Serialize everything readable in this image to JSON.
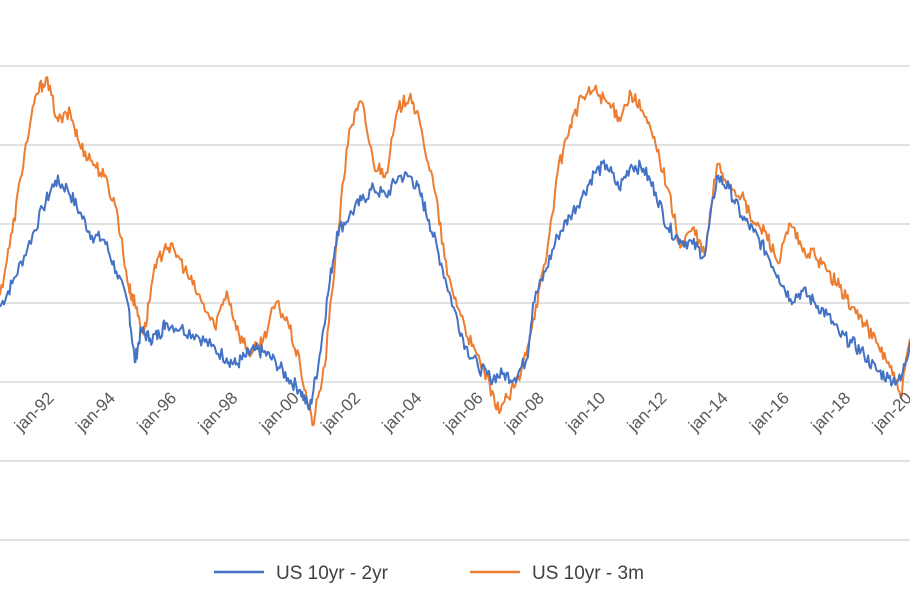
{
  "chart_data": {
    "type": "line",
    "title": "",
    "xlabel": "",
    "ylabel": "",
    "x_tick_labels": [
      "jan-92",
      "jan-94",
      "jan-96",
      "jan-98",
      "jan-00",
      "jan-02",
      "jan-04",
      "jan-06",
      "jan-08",
      "jan-10",
      "jan-12",
      "jan-14",
      "jan-16",
      "jan-18",
      "jan-20"
    ],
    "xlim": [
      1990.6,
      2020.3
    ],
    "y_tick_labels": [],
    "gridlines": 7,
    "grid": true,
    "legend_position": "bottom",
    "series": [
      {
        "name": "US 10yr - 2yr",
        "color": "#4472C4",
        "x": [
          1990.6,
          1991.0,
          1991.5,
          1992.0,
          1992.4,
          1992.8,
          1993.2,
          1993.6,
          1994.0,
          1994.4,
          1994.8,
          1995.0,
          1995.2,
          1995.5,
          1995.8,
          1996.0,
          1996.5,
          1997.0,
          1997.5,
          1998.0,
          1998.3,
          1998.6,
          1998.9,
          1999.2,
          1999.6,
          2000.0,
          2000.4,
          2000.7,
          2001.0,
          2001.3,
          2001.6,
          2002.0,
          2002.4,
          2002.8,
          2003.2,
          2003.6,
          2004.0,
          2004.3,
          2004.6,
          2005.0,
          2005.4,
          2005.8,
          2006.2,
          2006.6,
          2007.0,
          2007.4,
          2007.8,
          2008.0,
          2008.4,
          2008.8,
          2009.2,
          2009.6,
          2010.0,
          2010.4,
          2010.8,
          2011.2,
          2011.6,
          2012.0,
          2012.4,
          2012.8,
          2013.2,
          2013.6,
          2014.0,
          2014.4,
          2014.8,
          2015.2,
          2015.6,
          2016.0,
          2016.4,
          2016.8,
          2017.2,
          2017.6,
          2018.0,
          2018.4,
          2018.8,
          2019.2,
          2019.6,
          2020.0,
          2020.3
        ],
        "y": [
          0.95,
          1.25,
          1.7,
          2.2,
          2.55,
          2.45,
          2.15,
          1.85,
          1.8,
          1.4,
          0.95,
          0.25,
          0.65,
          0.55,
          0.6,
          0.75,
          0.68,
          0.6,
          0.45,
          0.3,
          0.22,
          0.32,
          0.4,
          0.38,
          0.25,
          0.05,
          -0.1,
          -0.35,
          0.25,
          1.1,
          1.9,
          2.1,
          2.3,
          2.45,
          2.35,
          2.6,
          2.6,
          2.4,
          2.05,
          1.5,
          0.95,
          0.45,
          0.2,
          0.05,
          0.1,
          0.05,
          0.3,
          1.0,
          1.4,
          1.85,
          2.1,
          2.35,
          2.65,
          2.75,
          2.45,
          2.75,
          2.7,
          2.4,
          1.95,
          1.8,
          1.75,
          1.6,
          2.6,
          2.45,
          2.1,
          1.9,
          1.65,
          1.35,
          1.05,
          1.15,
          1.0,
          0.85,
          0.6,
          0.5,
          0.35,
          0.15,
          0.05,
          0.02,
          0.5
        ]
      },
      {
        "name": "US 10yr - 3m",
        "color": "#ED7D31",
        "x": [
          1990.6,
          1991.0,
          1991.4,
          1991.8,
          1992.1,
          1992.5,
          1992.9,
          1993.2,
          1993.6,
          1994.0,
          1994.4,
          1994.8,
          1995.0,
          1995.3,
          1995.6,
          1996.0,
          1996.4,
          1996.8,
          1997.2,
          1997.6,
          1998.0,
          1998.4,
          1998.8,
          1999.2,
          1999.6,
          2000.0,
          2000.4,
          2000.8,
          2001.2,
          2001.6,
          2002.0,
          2002.4,
          2002.8,
          2003.2,
          2003.6,
          2004.0,
          2004.4,
          2004.8,
          2005.2,
          2005.6,
          2006.0,
          2006.4,
          2006.8,
          2007.2,
          2007.6,
          2008.0,
          2008.4,
          2008.8,
          2009.2,
          2009.6,
          2010.0,
          2010.4,
          2010.8,
          2011.2,
          2011.6,
          2012.0,
          2012.4,
          2012.8,
          2013.2,
          2013.6,
          2014.0,
          2014.4,
          2014.8,
          2015.2,
          2015.6,
          2016.0,
          2016.4,
          2016.8,
          2017.2,
          2017.6,
          2018.0,
          2018.4,
          2018.8,
          2019.2,
          2019.6,
          2020.0,
          2020.3
        ],
        "y": [
          1.1,
          1.9,
          2.9,
          3.65,
          3.85,
          3.3,
          3.4,
          3.0,
          2.8,
          2.6,
          2.2,
          1.2,
          1.0,
          0.6,
          1.35,
          1.75,
          1.6,
          1.3,
          1.0,
          0.7,
          1.15,
          0.6,
          0.35,
          0.55,
          1.0,
          0.75,
          0.2,
          -0.55,
          0.2,
          1.8,
          3.2,
          3.55,
          2.75,
          2.65,
          3.45,
          3.65,
          3.1,
          2.4,
          1.35,
          0.9,
          0.45,
          0.15,
          -0.35,
          -0.2,
          0.1,
          0.8,
          1.5,
          2.65,
          3.25,
          3.6,
          3.7,
          3.55,
          3.35,
          3.65,
          3.4,
          3.0,
          2.45,
          1.7,
          1.95,
          1.6,
          2.75,
          2.5,
          2.35,
          2.0,
          1.9,
          1.5,
          2.0,
          1.65,
          1.6,
          1.4,
          1.2,
          0.95,
          0.75,
          0.5,
          0.25,
          -0.2,
          0.55
        ]
      }
    ]
  }
}
